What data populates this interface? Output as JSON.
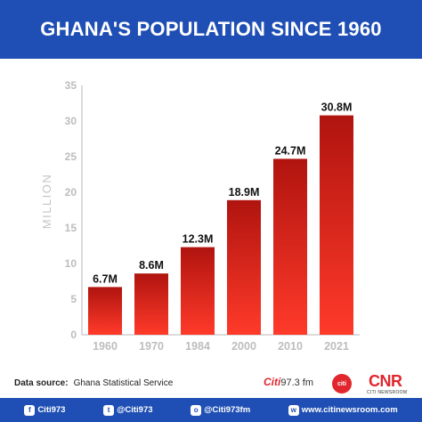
{
  "header": {
    "title": "GHANA'S POPULATION SINCE 1960"
  },
  "chart_data": {
    "type": "bar",
    "title": "GHANA'S POPULATION SINCE 1960",
    "ylabel": "MILLION",
    "xlabel": "",
    "categories": [
      "1960",
      "1970",
      "1984",
      "2000",
      "2010",
      "2021"
    ],
    "values": [
      6.7,
      8.6,
      12.3,
      18.9,
      24.7,
      30.8
    ],
    "data_labels": [
      "6.7M",
      "8.6M",
      "12.3M",
      "18.9M",
      "24.7M",
      "30.8M"
    ],
    "yticks": [
      "0",
      "5",
      "10",
      "15",
      "20",
      "25",
      "30",
      "35"
    ],
    "ylim": [
      0,
      35
    ],
    "grid": false,
    "legend": "none",
    "bar_color_top": "#b0140f",
    "bar_color_bottom": "#ff3a2a"
  },
  "source": {
    "label": "Data source:",
    "value": "Ghana Statistical Service"
  },
  "logos": {
    "citi": "Citi",
    "fm": "97.3 fm",
    "badge": "citi",
    "cnr": "CNR",
    "cnr_sub": "CITI NEWSROOM"
  },
  "footer": {
    "facebook": {
      "icon": "f",
      "handle": "Citi973"
    },
    "twitter": {
      "icon": "t",
      "handle": "@Citi973"
    },
    "instagram": {
      "icon": "o",
      "handle": "@Citi973fm"
    },
    "website": {
      "icon": "w",
      "handle": "www.citinewsroom.com"
    }
  }
}
